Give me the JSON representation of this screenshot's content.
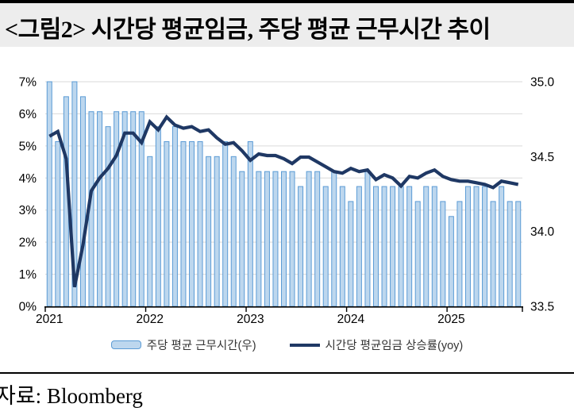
{
  "title": "<그림2> 시간당 평균임금, 주당 평균 근무시간 추이",
  "source": "자료: Bloomberg",
  "legend": [
    {
      "label": "주당 평균 근무시간(우)",
      "swatch": "light-blue-bar",
      "color": "#bdd7ee",
      "border_color": "#5b9bd5"
    },
    {
      "label": "시간당 평균임금 상승률(yoy)",
      "swatch": "navy-line",
      "color": "#1f3864"
    }
  ],
  "chart_data": {
    "type": "combo",
    "subtype": "monthly bars + line",
    "period": "2021-01 to 2025-09",
    "frequency": "monthly",
    "n_points": 57,
    "x_ticks": [
      "2021",
      "2022",
      "2023",
      "2024",
      "2025"
    ],
    "left_axis": {
      "ticks": [
        "0%",
        "1%",
        "2%",
        "3%",
        "4%",
        "5%",
        "6%",
        "7%"
      ],
      "range": [
        0,
        7
      ],
      "unit": "%"
    },
    "right_axis": {
      "ticks": [
        "33.5",
        "34.0",
        "34.5",
        "35.0"
      ],
      "range": [
        33.5,
        35.0
      ],
      "unit": "hours"
    },
    "grid": "horizontal",
    "legend_position": "bottom-center",
    "series": [
      {
        "name": "주당 평균 근무시간(우)",
        "type": "bar",
        "axis": "right",
        "fill": "#bdd7ee",
        "stroke": "#5b9bd5",
        "values": [
          35.0,
          34.6,
          34.9,
          35.0,
          34.9,
          34.8,
          34.8,
          34.7,
          34.8,
          34.8,
          34.8,
          34.8,
          34.5,
          34.7,
          34.6,
          34.7,
          34.6,
          34.6,
          34.6,
          34.5,
          34.5,
          34.6,
          34.5,
          34.4,
          34.6,
          34.4,
          34.4,
          34.4,
          34.4,
          34.4,
          34.3,
          34.4,
          34.4,
          34.3,
          34.4,
          34.3,
          34.2,
          34.3,
          34.4,
          34.3,
          34.3,
          34.3,
          34.3,
          34.3,
          34.2,
          34.3,
          34.3,
          34.2,
          34.1,
          34.2,
          34.3,
          34.3,
          34.3,
          34.2,
          34.3,
          34.2,
          34.2
        ]
      },
      {
        "name": "시간당 평균임금 상승률(yoy)",
        "type": "line",
        "axis": "left",
        "color": "#1f3864",
        "values": [
          5.3,
          5.45,
          4.6,
          0.6,
          1.9,
          3.6,
          4.0,
          4.3,
          4.7,
          5.4,
          5.4,
          5.1,
          5.75,
          5.5,
          5.9,
          5.65,
          5.55,
          5.6,
          5.45,
          5.5,
          5.25,
          5.05,
          5.1,
          4.85,
          4.55,
          4.75,
          4.7,
          4.7,
          4.6,
          4.45,
          4.65,
          4.65,
          4.5,
          4.35,
          4.2,
          4.15,
          4.3,
          4.2,
          4.25,
          3.95,
          4.1,
          4.0,
          3.75,
          4.05,
          4.0,
          4.15,
          4.25,
          4.05,
          3.95,
          3.9,
          3.9,
          3.85,
          3.8,
          3.7,
          3.9,
          3.85,
          3.8
        ]
      }
    ],
    "colors": {
      "gridline": "#d9d9d9",
      "axis": "#000000",
      "title_band_bg": "#ededed"
    }
  }
}
